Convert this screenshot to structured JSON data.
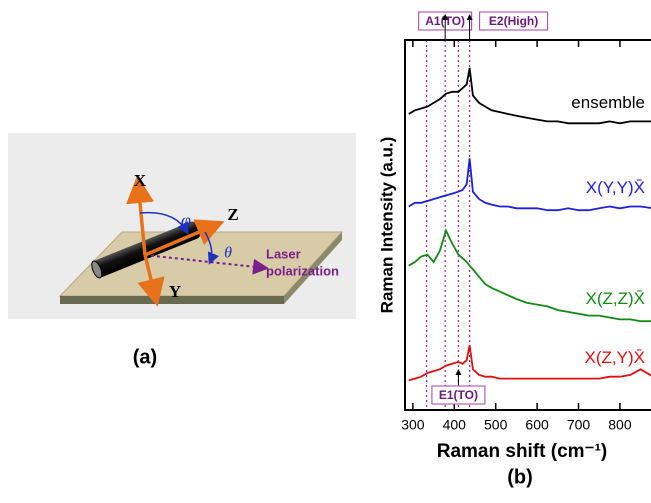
{
  "diagram": {
    "panel_label": "(a)",
    "axis_x": "X",
    "axis_y": "Y",
    "axis_z": "Z",
    "angle_phi": "φ",
    "angle_theta": "θ",
    "laser_line1": "Laser",
    "laser_line2": "polarization"
  },
  "chart_data": {
    "type": "line",
    "panel_label": "(b)",
    "x_label": "Raman shift (cm⁻¹)",
    "y_label": "Raman Intensity (a.u.)",
    "x": [
      290,
      305,
      320,
      335,
      350,
      365,
      380,
      395,
      410,
      420,
      430,
      437,
      445,
      460,
      475,
      490,
      510,
      530,
      550,
      575,
      600,
      625,
      650,
      675,
      700,
      725,
      750,
      775,
      800,
      825,
      850,
      880
    ],
    "series": [
      {
        "name": "ensemble",
        "color": "#000000",
        "values": [
          80,
          81,
          81.5,
          82,
          83,
          84,
          85.5,
          86,
          86,
          87,
          88,
          92.5,
          85,
          83,
          82,
          81,
          80.5,
          80,
          79.5,
          79,
          78.5,
          78,
          78,
          77.5,
          77.5,
          77.5,
          77.5,
          78,
          77.5,
          78,
          78,
          78
        ]
      },
      {
        "name": "X(Y,Y)X̄",
        "color": "#1f1fe0",
        "values": [
          55,
          56,
          56,
          56.5,
          57,
          57.5,
          58,
          58.5,
          59,
          59.5,
          61,
          68,
          59,
          57,
          56,
          55.5,
          55,
          55,
          54.5,
          54.5,
          54.5,
          54,
          54,
          54.5,
          54,
          54,
          54.5,
          55,
          54.5,
          55,
          55,
          54.5
        ]
      },
      {
        "name": "X(Z,Z)X̄",
        "color": "#138a13",
        "values": [
          39,
          40,
          41.5,
          42,
          40,
          43,
          48.5,
          45,
          42,
          41,
          40,
          39,
          38,
          36,
          34,
          33,
          32,
          31,
          30,
          29,
          28.5,
          28,
          27,
          26.5,
          26,
          25.5,
          25.5,
          25,
          24.5,
          24.5,
          24,
          24
        ]
      },
      {
        "name": "X(Z,Y)X̄",
        "color": "#e01010",
        "values": [
          8,
          8.5,
          9,
          10,
          10.5,
          11,
          12,
          12.5,
          13,
          12.5,
          13.5,
          17.5,
          11,
          9.5,
          9,
          9,
          8.5,
          8.5,
          8.5,
          8.5,
          8.5,
          8.5,
          8.5,
          8.5,
          8.5,
          8.5,
          8.5,
          9,
          9,
          9.5,
          11,
          9
        ]
      }
    ],
    "xlim": [
      281,
      875
    ],
    "ylim": [
      0,
      100
    ],
    "xticks": [
      300,
      400,
      500,
      600,
      700,
      800
    ],
    "vlines": [
      333,
      378,
      410,
      437
    ],
    "vline_color": "#a020a0",
    "annotations": [
      {
        "text": "A1(TO)",
        "x": 378,
        "position": "top"
      },
      {
        "text": "E2(High)",
        "x": 437,
        "position": "top"
      },
      {
        "text": "E1(TO)",
        "x": 410,
        "position": "bottom"
      }
    ]
  }
}
